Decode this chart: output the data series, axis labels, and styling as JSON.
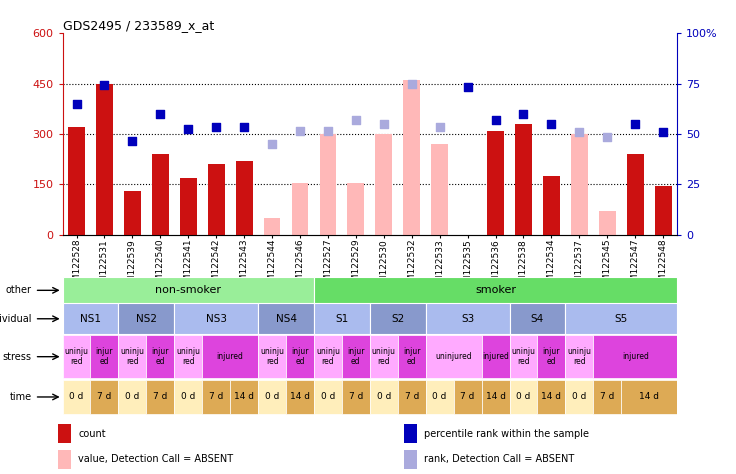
{
  "title": "GDS2495 / 233589_x_at",
  "samples": [
    "GSM122528",
    "GSM122531",
    "GSM122539",
    "GSM122540",
    "GSM122541",
    "GSM122542",
    "GSM122543",
    "GSM122544",
    "GSM122546",
    "GSM122527",
    "GSM122529",
    "GSM122530",
    "GSM122532",
    "GSM122533",
    "GSM122535",
    "GSM122536",
    "GSM122538",
    "GSM122534",
    "GSM122537",
    "GSM122545",
    "GSM122547",
    "GSM122548"
  ],
  "count_values": [
    320,
    450,
    130,
    240,
    170,
    210,
    220,
    0,
    0,
    0,
    0,
    0,
    0,
    0,
    0,
    310,
    330,
    175,
    0,
    0,
    240,
    145
  ],
  "absent_bar_values": [
    0,
    0,
    0,
    0,
    0,
    0,
    0,
    50,
    155,
    300,
    155,
    300,
    460,
    270,
    0,
    0,
    0,
    0,
    300,
    70,
    0,
    0
  ],
  "rank_present": [
    390,
    445,
    280,
    360,
    315,
    320,
    320,
    0,
    0,
    0,
    0,
    0,
    0,
    0,
    440,
    340,
    360,
    330,
    0,
    0,
    330,
    305
  ],
  "rank_absent": [
    0,
    0,
    0,
    0,
    0,
    0,
    0,
    270,
    310,
    310,
    340,
    330,
    450,
    320,
    0,
    0,
    0,
    0,
    305,
    290,
    0,
    0
  ],
  "ylim_left": [
    0,
    600
  ],
  "ylim_right": [
    0,
    100
  ],
  "yticks_left": [
    0,
    150,
    300,
    450,
    600
  ],
  "yticks_right": [
    0,
    25,
    50,
    75,
    100
  ],
  "ytick_labels_left": [
    "0",
    "150",
    "300",
    "450",
    "600"
  ],
  "ytick_labels_right": [
    "0",
    "25",
    "50",
    "75",
    "100%"
  ],
  "hlines": [
    150,
    300,
    450
  ],
  "bar_color_present": "#cc1111",
  "bar_color_absent": "#ffb8b8",
  "rank_color_present": "#0000bb",
  "rank_color_absent": "#aaaadd",
  "bar_width": 0.6,
  "rank_marker_size": 40,
  "other_row": {
    "label": "other",
    "groups": [
      {
        "text": "non-smoker",
        "start": 0,
        "end": 9,
        "color": "#99ee99"
      },
      {
        "text": "smoker",
        "start": 9,
        "end": 22,
        "color": "#66dd66"
      }
    ]
  },
  "individual_row": {
    "label": "individual",
    "groups": [
      {
        "text": "NS1",
        "start": 0,
        "end": 2,
        "color": "#aabbee"
      },
      {
        "text": "NS2",
        "start": 2,
        "end": 4,
        "color": "#8899cc"
      },
      {
        "text": "NS3",
        "start": 4,
        "end": 7,
        "color": "#aabbee"
      },
      {
        "text": "NS4",
        "start": 7,
        "end": 9,
        "color": "#8899cc"
      },
      {
        "text": "S1",
        "start": 9,
        "end": 11,
        "color": "#aabbee"
      },
      {
        "text": "S2",
        "start": 11,
        "end": 13,
        "color": "#8899cc"
      },
      {
        "text": "S3",
        "start": 13,
        "end": 16,
        "color": "#aabbee"
      },
      {
        "text": "S4",
        "start": 16,
        "end": 18,
        "color": "#8899cc"
      },
      {
        "text": "S5",
        "start": 18,
        "end": 22,
        "color": "#aabbee"
      }
    ]
  },
  "stress_row": {
    "label": "stress",
    "cells": [
      {
        "text": "uninju\nred",
        "start": 0,
        "end": 1,
        "color": "#ffaaff"
      },
      {
        "text": "injur\ned",
        "start": 1,
        "end": 2,
        "color": "#dd44dd"
      },
      {
        "text": "uninju\nred",
        "start": 2,
        "end": 3,
        "color": "#ffaaff"
      },
      {
        "text": "injur\ned",
        "start": 3,
        "end": 4,
        "color": "#dd44dd"
      },
      {
        "text": "uninju\nred",
        "start": 4,
        "end": 5,
        "color": "#ffaaff"
      },
      {
        "text": "injured",
        "start": 5,
        "end": 7,
        "color": "#dd44dd"
      },
      {
        "text": "uninju\nred",
        "start": 7,
        "end": 8,
        "color": "#ffaaff"
      },
      {
        "text": "injur\ned",
        "start": 8,
        "end": 9,
        "color": "#dd44dd"
      },
      {
        "text": "uninju\nred",
        "start": 9,
        "end": 10,
        "color": "#ffaaff"
      },
      {
        "text": "injur\ned",
        "start": 10,
        "end": 11,
        "color": "#dd44dd"
      },
      {
        "text": "uninju\nred",
        "start": 11,
        "end": 12,
        "color": "#ffaaff"
      },
      {
        "text": "injur\ned",
        "start": 12,
        "end": 13,
        "color": "#dd44dd"
      },
      {
        "text": "uninjured",
        "start": 13,
        "end": 15,
        "color": "#ffaaff"
      },
      {
        "text": "injured",
        "start": 15,
        "end": 16,
        "color": "#dd44dd"
      },
      {
        "text": "uninju\nred",
        "start": 16,
        "end": 17,
        "color": "#ffaaff"
      },
      {
        "text": "injur\ned",
        "start": 17,
        "end": 18,
        "color": "#dd44dd"
      },
      {
        "text": "uninju\nred",
        "start": 18,
        "end": 19,
        "color": "#ffaaff"
      },
      {
        "text": "injured",
        "start": 19,
        "end": 22,
        "color": "#dd44dd"
      }
    ]
  },
  "time_row": {
    "label": "time",
    "cells": [
      {
        "text": "0 d",
        "start": 0,
        "end": 1,
        "color": "#ffeebb"
      },
      {
        "text": "7 d",
        "start": 1,
        "end": 2,
        "color": "#ddaa55"
      },
      {
        "text": "0 d",
        "start": 2,
        "end": 3,
        "color": "#ffeebb"
      },
      {
        "text": "7 d",
        "start": 3,
        "end": 4,
        "color": "#ddaa55"
      },
      {
        "text": "0 d",
        "start": 4,
        "end": 5,
        "color": "#ffeebb"
      },
      {
        "text": "7 d",
        "start": 5,
        "end": 6,
        "color": "#ddaa55"
      },
      {
        "text": "14 d",
        "start": 6,
        "end": 7,
        "color": "#ddaa55"
      },
      {
        "text": "0 d",
        "start": 7,
        "end": 8,
        "color": "#ffeebb"
      },
      {
        "text": "14 d",
        "start": 8,
        "end": 9,
        "color": "#ddaa55"
      },
      {
        "text": "0 d",
        "start": 9,
        "end": 10,
        "color": "#ffeebb"
      },
      {
        "text": "7 d",
        "start": 10,
        "end": 11,
        "color": "#ddaa55"
      },
      {
        "text": "0 d",
        "start": 11,
        "end": 12,
        "color": "#ffeebb"
      },
      {
        "text": "7 d",
        "start": 12,
        "end": 13,
        "color": "#ddaa55"
      },
      {
        "text": "0 d",
        "start": 13,
        "end": 14,
        "color": "#ffeebb"
      },
      {
        "text": "7 d",
        "start": 14,
        "end": 15,
        "color": "#ddaa55"
      },
      {
        "text": "14 d",
        "start": 15,
        "end": 16,
        "color": "#ddaa55"
      },
      {
        "text": "0 d",
        "start": 16,
        "end": 17,
        "color": "#ffeebb"
      },
      {
        "text": "14 d",
        "start": 17,
        "end": 18,
        "color": "#ddaa55"
      },
      {
        "text": "0 d",
        "start": 18,
        "end": 19,
        "color": "#ffeebb"
      },
      {
        "text": "7 d",
        "start": 19,
        "end": 20,
        "color": "#ddaa55"
      },
      {
        "text": "14 d",
        "start": 20,
        "end": 22,
        "color": "#ddaa55"
      }
    ]
  },
  "legend": [
    {
      "label": "count",
      "color": "#cc1111"
    },
    {
      "label": "percentile rank within the sample",
      "color": "#0000bb"
    },
    {
      "label": "value, Detection Call = ABSENT",
      "color": "#ffb8b8"
    },
    {
      "label": "rank, Detection Call = ABSENT",
      "color": "#aaaadd"
    }
  ]
}
